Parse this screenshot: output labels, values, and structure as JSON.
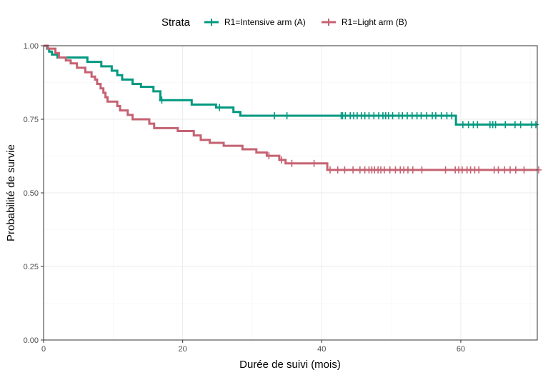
{
  "chart_data": {
    "type": "line",
    "subtype": "kaplan-meier-step",
    "title": "",
    "xlabel": "Durée de suivi (mois)",
    "ylabel": "Probabilité de survie",
    "xlim": [
      0,
      71
    ],
    "ylim": [
      0,
      1
    ],
    "xticks": [
      0,
      20,
      40,
      60
    ],
    "xtick_labels": [
      "0",
      "20",
      "40",
      "60"
    ],
    "yticks": [
      0,
      0.25,
      0.5,
      0.75,
      1
    ],
    "ytick_labels": [
      "0.00",
      "0.25",
      "0.50",
      "0.75",
      "1.00"
    ],
    "grid": true,
    "legend": {
      "title": "Strata",
      "position": "top",
      "entries": [
        "R1=Intensive arm (A)",
        "R1=Light arm (B)"
      ]
    },
    "series": [
      {
        "name": "R1=Intensive arm (A)",
        "color": "#009980",
        "steps": [
          [
            0,
            1.0
          ],
          [
            0.5,
            0.99
          ],
          [
            0.8,
            0.98
          ],
          [
            1.2,
            0.97
          ],
          [
            2.0,
            0.96
          ],
          [
            6.3,
            0.945
          ],
          [
            8.3,
            0.93
          ],
          [
            9.8,
            0.915
          ],
          [
            10.6,
            0.9
          ],
          [
            11.3,
            0.885
          ],
          [
            12.8,
            0.87
          ],
          [
            14.0,
            0.86
          ],
          [
            15.8,
            0.845
          ],
          [
            16.8,
            0.815
          ],
          [
            21.3,
            0.8
          ],
          [
            24.8,
            0.79
          ],
          [
            27.3,
            0.775
          ],
          [
            28.3,
            0.762
          ],
          [
            59.3,
            0.732
          ]
        ],
        "censored": [
          17.0,
          25.3,
          33.2,
          35.0,
          42.8,
          43.0,
          43.4,
          44.1,
          44.6,
          45.1,
          45.7,
          46.2,
          46.8,
          47.5,
          48.2,
          48.8,
          49.2,
          49.6,
          50.2,
          51.1,
          51.6,
          52.3,
          53.0,
          53.7,
          54.3,
          55.1,
          55.9,
          56.4,
          57.2,
          58.0,
          58.7,
          60.3,
          61.1,
          61.8,
          62.4,
          64.2,
          64.6,
          65.0,
          66.4,
          67.8,
          68.6,
          70.2,
          70.8
        ]
      },
      {
        "name": "R1=Light arm (B)",
        "color": "#c56272",
        "steps": [
          [
            0,
            1.0
          ],
          [
            0.6,
            0.99
          ],
          [
            1.7,
            0.975
          ],
          [
            2.2,
            0.96
          ],
          [
            3.2,
            0.95
          ],
          [
            3.9,
            0.94
          ],
          [
            4.8,
            0.925
          ],
          [
            6.0,
            0.91
          ],
          [
            6.9,
            0.895
          ],
          [
            7.4,
            0.885
          ],
          [
            7.7,
            0.87
          ],
          [
            8.2,
            0.855
          ],
          [
            8.6,
            0.84
          ],
          [
            8.9,
            0.825
          ],
          [
            9.2,
            0.81
          ],
          [
            10.6,
            0.795
          ],
          [
            11.0,
            0.78
          ],
          [
            12.1,
            0.765
          ],
          [
            12.8,
            0.75
          ],
          [
            15.2,
            0.735
          ],
          [
            15.9,
            0.72
          ],
          [
            19.3,
            0.71
          ],
          [
            21.6,
            0.695
          ],
          [
            22.6,
            0.68
          ],
          [
            23.9,
            0.67
          ],
          [
            25.9,
            0.66
          ],
          [
            28.6,
            0.648
          ],
          [
            30.6,
            0.637
          ],
          [
            32.1,
            0.626
          ],
          [
            33.9,
            0.612
          ],
          [
            34.8,
            0.6
          ],
          [
            40.8,
            0.578
          ]
        ],
        "censored": [
          32.4,
          34.2,
          35.7,
          38.9,
          41.2,
          42.3,
          43.3,
          44.5,
          45.5,
          46.2,
          46.8,
          47.2,
          47.6,
          48.1,
          48.5,
          49.0,
          49.8,
          50.6,
          51.3,
          51.8,
          52.4,
          53.1,
          54.4,
          57.8,
          59.2,
          59.7,
          60.2,
          60.9,
          61.4,
          62.0,
          62.6,
          64.8,
          65.4,
          66.3,
          67.1,
          67.9,
          69.1,
          71.2
        ]
      }
    ]
  }
}
